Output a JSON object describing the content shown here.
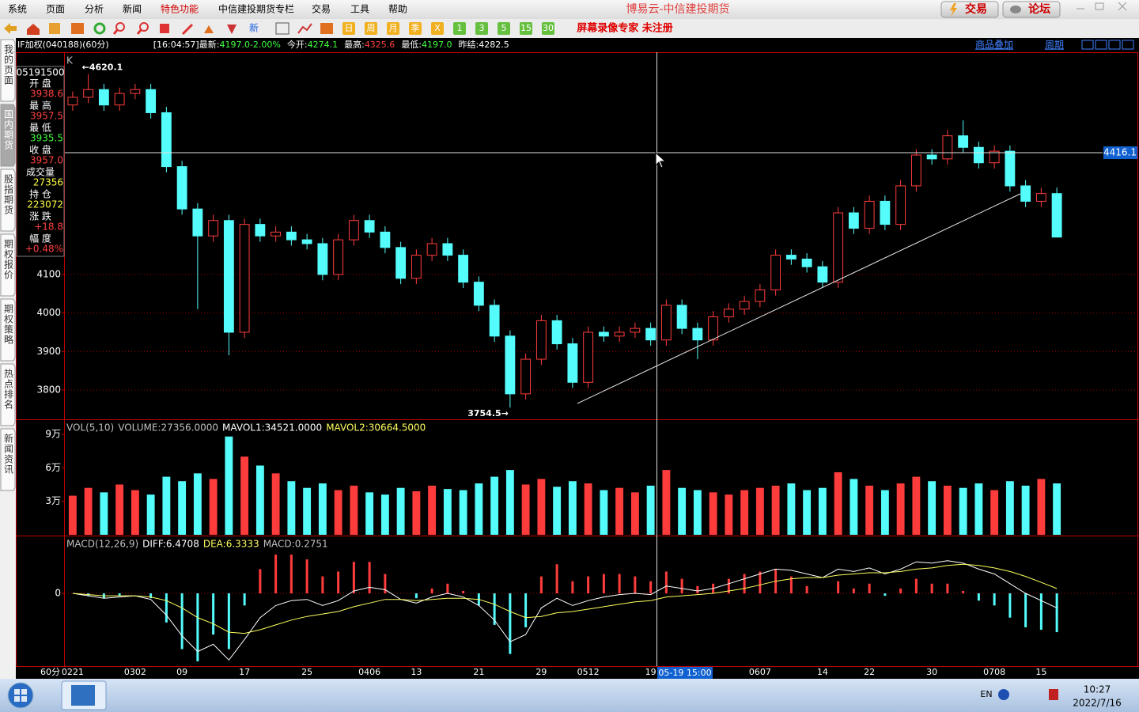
{
  "window": {
    "title": "博易云-中信建投期货",
    "trade_button": "交易",
    "forum_button": "论坛"
  },
  "menu": [
    "系统",
    "页面",
    "分析",
    "新闻",
    "特色功能",
    "中信建投期货专栏",
    "交易",
    "工具",
    "帮助"
  ],
  "toolbar": {
    "new_label": "新",
    "periods": [
      "日",
      "周",
      "月",
      "季",
      "X",
      "1",
      "3",
      "5",
      "15",
      "30"
    ],
    "watermark": "屏幕录像专家 未注册"
  },
  "info_bar": {
    "groups": [
      [
        {
          "text": "IF加权(040188)(60分)",
          "color": "#ffffff"
        }
      ],
      [
        {
          "text": "[16:04:57]",
          "color": "#ffffff"
        },
        {
          "text": "最新:",
          "color": "#ffffff"
        },
        {
          "text": "4197.0",
          "color": "#40ff40"
        },
        {
          "text": " -2.00%",
          "color": "#40ff40"
        }
      ],
      [
        {
          "text": "今开:",
          "color": "#ffffff"
        },
        {
          "text": "4274.1",
          "color": "#40ff40"
        }
      ],
      [
        {
          "text": "最高:",
          "color": "#ffffff"
        },
        {
          "text": "4325.6",
          "color": "#ff4040"
        }
      ],
      [
        {
          "text": "最低:",
          "color": "#ffffff"
        },
        {
          "text": "4197.0",
          "color": "#40ff40"
        }
      ],
      [
        {
          "text": "昨结:",
          "color": "#ffffff"
        },
        {
          "text": "4282.5",
          "color": "#ffffff"
        }
      ]
    ],
    "overlay_link": "商品叠加",
    "period_link": "周期"
  },
  "side_tabs": [
    "我的页面",
    "国内期货",
    "股指期货",
    "期权报价",
    "期权策略",
    "热点排名",
    "新闻资讯"
  ],
  "quote_panel": {
    "time": "05191500",
    "rows": [
      {
        "label": "开 盘",
        "value": "3938.6",
        "color": "#ff4040"
      },
      {
        "label": "最 高",
        "value": "3957.5",
        "color": "#ff4040"
      },
      {
        "label": "最 低",
        "value": "3935.5",
        "color": "#40ff40"
      },
      {
        "label": "收 盘",
        "value": "3957.0",
        "color": "#ff4040"
      },
      {
        "label": "成交量",
        "value": "27356",
        "color": "#ffff40"
      },
      {
        "label": "持 仓",
        "value": "223072",
        "color": "#ffff40"
      },
      {
        "label": "涨 跌",
        "value": "+18.8",
        "color": "#ff4040"
      },
      {
        "label": "幅 度",
        "value": "+0.48%",
        "color": "#ff4040"
      }
    ]
  },
  "chart_data": [
    {
      "type": "candlestick",
      "panel_label": "K",
      "period_label": "60分",
      "up_color": "#ff3c3c",
      "down_color": "#54fcfc",
      "ylim": [
        3724,
        4677
      ],
      "yticks": [
        3800,
        3900,
        4000,
        4100
      ],
      "grid": true,
      "max_annotation": "←4620.1",
      "min_annotation": "3754.5→",
      "crosshair_value": 4416.1,
      "crosshair_time": "05-19 15:00",
      "categories": [
        "0221",
        null,
        null,
        null,
        "0302",
        null,
        null,
        "09",
        null,
        null,
        null,
        "17",
        null,
        null,
        null,
        "25",
        null,
        null,
        null,
        "0406",
        null,
        null,
        "13",
        null,
        null,
        null,
        "21",
        null,
        null,
        null,
        "29",
        null,
        null,
        "0512",
        null,
        null,
        null,
        "19",
        null,
        null,
        null,
        null,
        null,
        null,
        "0607",
        null,
        null,
        null,
        "14",
        null,
        null,
        "22",
        null,
        null,
        null,
        "30",
        null,
        null,
        null,
        "0708",
        null,
        null,
        "15",
        null
      ],
      "open": [
        4540,
        4560,
        4580,
        4540,
        4570,
        4580,
        4520,
        4380,
        4270,
        4200,
        4240,
        3950,
        4230,
        4200,
        4210,
        4190,
        4180,
        4100,
        4190,
        4240,
        4210,
        4170,
        4090,
        4150,
        4180,
        4150,
        4080,
        4020,
        3940,
        3790,
        3880,
        3980,
        3920,
        3820,
        3950,
        3940,
        3950,
        3960,
        3930,
        4020,
        3960,
        3930,
        3990,
        4010,
        4030,
        4060,
        4150,
        4140,
        4120,
        4080,
        4260,
        4220,
        4290,
        4230,
        4330,
        4410,
        4400,
        4460,
        4430,
        4390,
        4420,
        4330,
        4290,
        4310
      ],
      "high": [
        4575,
        4620.1,
        4595,
        4585,
        4595,
        4595,
        4535,
        4395,
        4285,
        4255,
        4255,
        4245,
        4245,
        4225,
        4225,
        4205,
        4195,
        4205,
        4255,
        4255,
        4225,
        4185,
        4165,
        4195,
        4195,
        4165,
        4095,
        4035,
        3955,
        3895,
        3995,
        3995,
        3935,
        3965,
        3965,
        3965,
        3975,
        3975,
        4035,
        4035,
        3975,
        4005,
        4025,
        4045,
        4075,
        4165,
        4165,
        4155,
        4135,
        4275,
        4275,
        4305,
        4305,
        4345,
        4425,
        4425,
        4475,
        4500,
        4445,
        4435,
        4435,
        4345,
        4325,
        4325.6
      ],
      "low": [
        4525,
        4545,
        4525,
        4525,
        4555,
        4505,
        4365,
        4255,
        4010,
        4185,
        3890,
        3935,
        4185,
        4185,
        4175,
        4165,
        4085,
        4085,
        4175,
        4195,
        4155,
        4075,
        4075,
        4135,
        4135,
        4065,
        4005,
        3925,
        3754.5,
        3775,
        3865,
        3905,
        3805,
        3805,
        3925,
        3925,
        3935,
        3915,
        3915,
        3945,
        3880,
        3915,
        3975,
        3995,
        4015,
        4045,
        4125,
        4105,
        4065,
        4065,
        4205,
        4205,
        4215,
        4215,
        4315,
        4385,
        4385,
        4415,
        4375,
        4375,
        4315,
        4275,
        4275,
        4197
      ],
      "close": [
        4560,
        4580,
        4540,
        4570,
        4580,
        4520,
        4380,
        4270,
        4200,
        4240,
        3950,
        4230,
        4200,
        4210,
        4190,
        4180,
        4100,
        4190,
        4240,
        4210,
        4170,
        4090,
        4150,
        4180,
        4150,
        4080,
        4020,
        3940,
        3790,
        3880,
        3980,
        3920,
        3820,
        3950,
        3940,
        3950,
        3960,
        3930,
        4020,
        3960,
        3930,
        3990,
        4010,
        4030,
        4060,
        4150,
        4140,
        4120,
        4080,
        4260,
        4220,
        4290,
        4230,
        4330,
        4410,
        4400,
        4460,
        4430,
        4390,
        4420,
        4330,
        4290,
        4310,
        4197
      ]
    },
    {
      "type": "bar",
      "legend": [
        {
          "text": "VOL(5,10)",
          "color": "#c0c0c0"
        },
        {
          "text": "VOLUME:27356.0000",
          "color": "#c0c0c0"
        },
        {
          "text": "MAVOL1:34521.0000",
          "color": "#ffffff"
        },
        {
          "text": "MAVOL2:30664.5000",
          "color": "#ffff60"
        }
      ],
      "ylim": [
        0,
        102000
      ],
      "yticks": [
        {
          "value": 30000,
          "label": "3万"
        },
        {
          "value": 60000,
          "label": "6万"
        },
        {
          "value": 90000,
          "label": "9万"
        }
      ],
      "values": [
        35000,
        42000,
        38000,
        45000,
        40000,
        36000,
        52000,
        48000,
        55000,
        50000,
        88000,
        70000,
        62000,
        55000,
        48000,
        42000,
        46000,
        40000,
        44000,
        38000,
        36000,
        42000,
        39000,
        44000,
        41000,
        40000,
        46000,
        52000,
        58000,
        45000,
        50000,
        43000,
        48000,
        46000,
        40000,
        42000,
        38000,
        44000,
        58000,
        42000,
        40000,
        38000,
        36000,
        40000,
        42000,
        44000,
        46000,
        40000,
        42000,
        56000,
        50000,
        44000,
        40000,
        46000,
        52000,
        48000,
        44000,
        42000,
        46000,
        40000,
        48000,
        44000,
        50000,
        46000
      ]
    },
    {
      "type": "macd",
      "legend": [
        {
          "text": "MACD(12,26,9)",
          "color": "#c0c0c0"
        },
        {
          "text": "DIFF:6.4708",
          "color": "#ffffff"
        },
        {
          "text": "DEA:6.3333",
          "color": "#ffff60"
        },
        {
          "text": "MACD:0.2751",
          "color": "#c0c0c0"
        }
      ],
      "ylim": [
        -60,
        47
      ],
      "yticks": [
        0
      ],
      "series": [
        {
          "name": "DIFF",
          "color": "#ffffff",
          "values": [
            0,
            -2,
            -4,
            -3,
            -2,
            -5,
            -18,
            -35,
            -48,
            -42,
            -55,
            -38,
            -20,
            -10,
            -6,
            -5,
            -10,
            -6,
            2,
            5,
            3,
            -5,
            -8,
            -3,
            0,
            -3,
            -10,
            -22,
            -40,
            -34,
            -12,
            -4,
            -10,
            -6,
            -3,
            -1,
            0,
            -1,
            6,
            4,
            2,
            4,
            8,
            12,
            16,
            20,
            19,
            16,
            13,
            20,
            18,
            21,
            16,
            20,
            26,
            25,
            27,
            25,
            20,
            16,
            8,
            0,
            -6,
            -12
          ]
        },
        {
          "name": "DEA",
          "color": "#ffff60",
          "values": [
            0,
            -1,
            -2,
            -2,
            -2,
            -3,
            -6,
            -12,
            -20,
            -25,
            -32,
            -33,
            -30,
            -26,
            -22,
            -19,
            -17,
            -15,
            -11,
            -8,
            -5,
            -5,
            -6,
            -5,
            -4,
            -4,
            -5,
            -9,
            -15,
            -20,
            -19,
            -16,
            -15,
            -13,
            -11,
            -9,
            -7,
            -6,
            -3,
            -2,
            -1,
            0,
            2,
            4,
            7,
            10,
            12,
            13,
            13,
            15,
            16,
            17,
            17,
            18,
            20,
            21,
            23,
            24,
            23,
            21,
            18,
            14,
            9,
            4
          ]
        },
        {
          "name": "MACD",
          "color": "#ff3c3c",
          "values": [
            0,
            -2,
            -4,
            -2,
            0,
            -4,
            -24,
            -46,
            -56,
            -34,
            -46,
            -10,
            20,
            32,
            32,
            28,
            14,
            18,
            26,
            26,
            16,
            0,
            -4,
            4,
            8,
            2,
            -10,
            -26,
            -50,
            -28,
            14,
            24,
            10,
            14,
            16,
            16,
            14,
            10,
            18,
            12,
            6,
            8,
            12,
            16,
            18,
            20,
            14,
            6,
            0,
            10,
            4,
            8,
            -2,
            4,
            12,
            8,
            8,
            2,
            -6,
            -10,
            -20,
            -28,
            -30,
            -32
          ]
        }
      ]
    }
  ],
  "taskbar": {
    "lang": "EN",
    "time": "10:27",
    "date": "2022/7/16"
  }
}
